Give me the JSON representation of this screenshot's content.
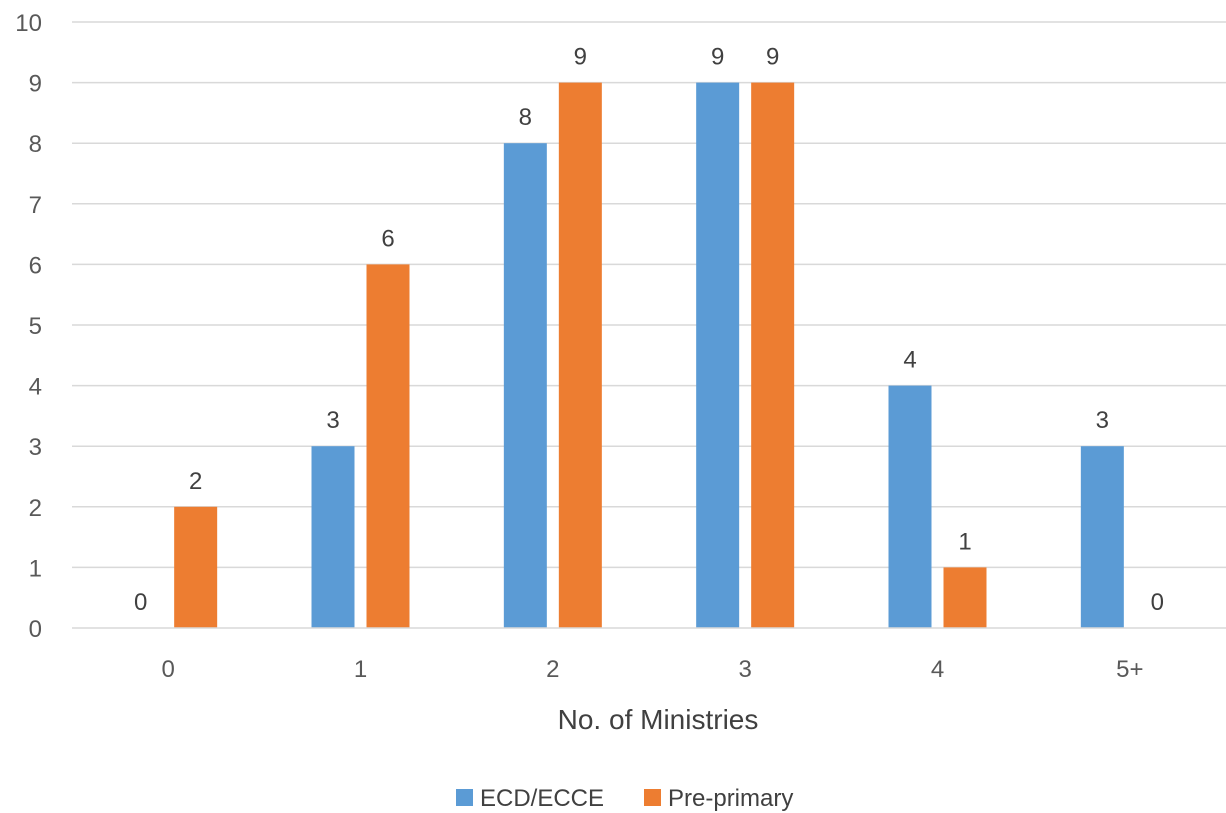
{
  "chart_data": {
    "type": "bar",
    "categories": [
      "0",
      "1",
      "2",
      "3",
      "4",
      "5+"
    ],
    "series": [
      {
        "name": "ECD/ECCE",
        "values": [
          0,
          3,
          8,
          9,
          4,
          3
        ],
        "color": "#5B9BD5"
      },
      {
        "name": "Pre-primary",
        "values": [
          2,
          6,
          9,
          9,
          1,
          0
        ],
        "color": "#ED7D31"
      }
    ],
    "title": "",
    "xlabel": "No. of Ministries",
    "ylabel": "",
    "ylim": [
      0,
      10
    ],
    "yticks": [
      0,
      1,
      2,
      3,
      4,
      5,
      6,
      7,
      8,
      9,
      10
    ],
    "grid": true,
    "legend_position": "bottom",
    "data_labels": true
  }
}
